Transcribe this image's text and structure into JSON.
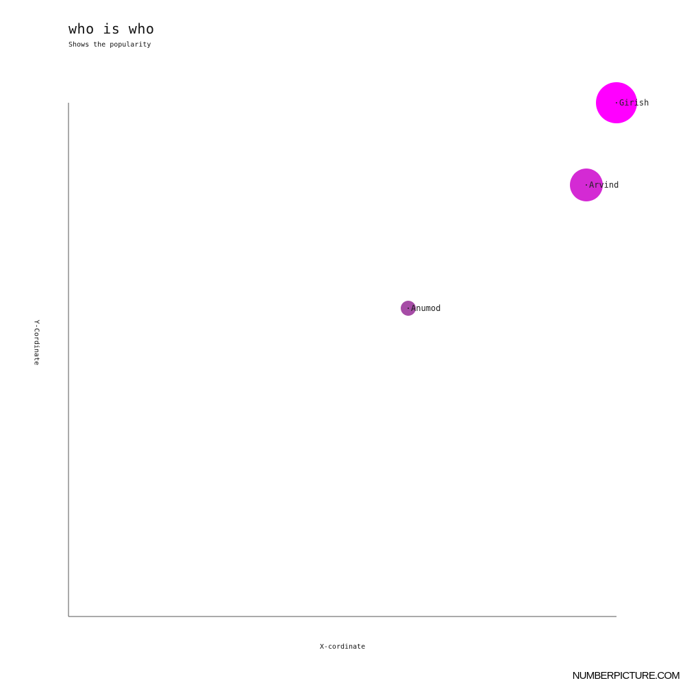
{
  "chart_data": {
    "type": "scatter",
    "title": "who is who",
    "subtitle": "Shows the popularity",
    "xlabel": "X-cordinate",
    "ylabel": "Y-Cordinate",
    "xlim": [
      0,
      100
    ],
    "ylim": [
      0,
      100
    ],
    "grid": false,
    "points": [
      {
        "name": "Anumod",
        "x": 62,
        "y": 60,
        "size": 11,
        "color": "#a64ca6"
      },
      {
        "name": "Arvind",
        "x": 94.5,
        "y": 84,
        "size": 24,
        "color": "#d42ad4"
      },
      {
        "name": "Girish",
        "x": 100,
        "y": 100,
        "size": 30,
        "color": "#ff00ff"
      }
    ]
  },
  "branding": {
    "label": "NUMBERPICTURE.COM"
  }
}
